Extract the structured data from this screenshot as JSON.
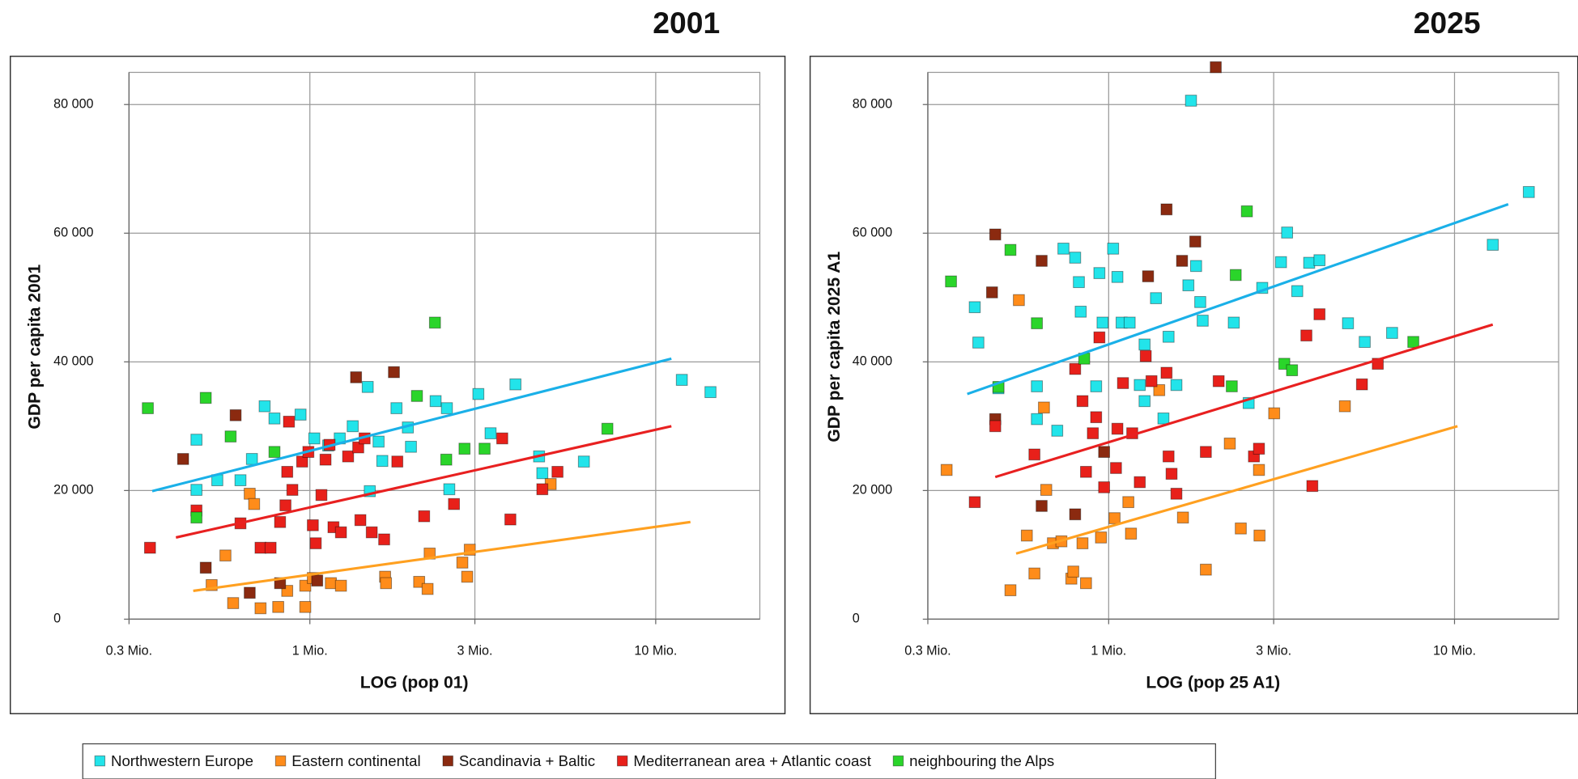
{
  "chart_data": [
    {
      "type": "scatter",
      "title": "2001",
      "xlabel": "LOG (pop 01)",
      "ylabel": "GDP per capita 2001",
      "xscale": "log",
      "grid": true,
      "legend": "bottom",
      "xlim": [
        0.3,
        20
      ],
      "ylim": [
        0,
        85000
      ],
      "xticks": [
        {
          "value": 0.3,
          "label": "0.3 Mio."
        },
        {
          "value": 1,
          "label": "1 Mio."
        },
        {
          "value": 3,
          "label": "3 Mio."
        },
        {
          "value": 10,
          "label": "10 Mio."
        }
      ],
      "yticks": [
        0,
        {
          "value": 20000,
          "label": "20 000"
        },
        {
          "value": 40000,
          "label": "40 000"
        },
        {
          "value": 60000,
          "label": "60 000"
        },
        {
          "value": 80000,
          "label": "80 000"
        }
      ],
      "series": [
        {
          "name": "Northwestern Europe",
          "color": "#22e4ea",
          "x": [
            0.47,
            0.47,
            0.54,
            0.63,
            0.68,
            0.74,
            0.79,
            0.94,
            1.03,
            1.13,
            1.22,
            1.33,
            1.47,
            1.58,
            1.62,
            1.78,
            1.92,
            1.96,
            2.31,
            2.49,
            3.07,
            3.33,
            3.93,
            4.6,
            4.7,
            6.2,
            11.9,
            14.4,
            2.53,
            1.49
          ],
          "values": [
            20100,
            27900,
            21600,
            21600,
            24900,
            33100,
            31200,
            31800,
            28100,
            27000,
            28100,
            30000,
            36100,
            27600,
            24600,
            32800,
            29800,
            26800,
            33900,
            32800,
            35000,
            28900,
            36500,
            25300,
            22700,
            24500,
            37200,
            35300,
            20200,
            19900
          ]
        },
        {
          "name": "Eastern continental",
          "color": "#ff8c1a",
          "x": [
            0.52,
            0.57,
            0.6,
            0.67,
            0.69,
            0.72,
            0.81,
            0.86,
            0.97,
            1.02,
            0.97,
            1.15,
            1.23,
            1.65,
            1.66,
            2.07,
            2.19,
            2.22,
            2.76,
            2.85,
            2.9,
            4.97
          ],
          "values": [
            5300,
            9900,
            2500,
            19500,
            17900,
            1700,
            1900,
            4400,
            5200,
            6400,
            1900,
            5600,
            5200,
            6600,
            5600,
            5800,
            4700,
            10200,
            8800,
            6600,
            10800,
            21000
          ]
        },
        {
          "name": "Scandinavia + Baltic",
          "color": "#8b2a10",
          "x": [
            0.43,
            0.5,
            0.61,
            0.67,
            0.82,
            1.05,
            1.36,
            1.75
          ],
          "values": [
            24900,
            8000,
            31700,
            4100,
            5600,
            6000,
            37600,
            38400
          ]
        },
        {
          "name": "Mediterranean area + Atlantic coast",
          "color": "#e8201a",
          "x": [
            0.345,
            0.47,
            0.63,
            0.72,
            0.77,
            0.82,
            0.85,
            0.86,
            0.87,
            0.89,
            0.95,
            0.99,
            1.02,
            1.04,
            1.08,
            1.11,
            1.14,
            1.17,
            1.23,
            1.29,
            1.38,
            1.4,
            1.44,
            1.51,
            1.64,
            1.79,
            2.14,
            2.61,
            3.6,
            3.8,
            4.7,
            5.2
          ],
          "values": [
            11100,
            16900,
            14900,
            11100,
            11100,
            15100,
            17700,
            22900,
            30700,
            20100,
            24500,
            26000,
            14600,
            11800,
            19300,
            24800,
            27100,
            14300,
            13500,
            25300,
            26700,
            15400,
            28100,
            13500,
            12400,
            24500,
            16000,
            17900,
            28100,
            15500,
            20200,
            22900
          ]
        },
        {
          "name": "neighbouring the Alps",
          "color": "#2ad52a",
          "x": [
            0.34,
            0.47,
            0.5,
            0.59,
            0.79,
            2.04,
            2.3,
            2.48,
            2.8,
            3.2,
            7.25
          ],
          "values": [
            32800,
            15800,
            34400,
            28400,
            26000,
            34700,
            46100,
            24800,
            26500,
            26500,
            29600
          ]
        }
      ],
      "trendlines": [
        {
          "color": "#1ab0e8",
          "x": [
            0.35,
            11.1
          ],
          "values": [
            19900,
            40500
          ]
        },
        {
          "color": "#e82020",
          "x": [
            0.41,
            11.1
          ],
          "values": [
            12700,
            30000
          ]
        },
        {
          "color": "#ffa020",
          "x": [
            0.46,
            12.6
          ],
          "values": [
            4400,
            15100
          ]
        }
      ]
    },
    {
      "type": "scatter",
      "title": "2025",
      "xlabel": "LOG (pop 25 A1)",
      "ylabel": "GDP per capita 2025  A1",
      "xscale": "log",
      "grid": true,
      "xlim": [
        0.3,
        20
      ],
      "ylim": [
        0,
        85000
      ],
      "xticks": [
        {
          "value": 0.3,
          "label": "0.3 Mio."
        },
        {
          "value": 1,
          "label": "1 Mio."
        },
        {
          "value": 3,
          "label": "3 Mio."
        },
        {
          "value": 10,
          "label": "10 Mio."
        }
      ],
      "yticks": [
        0,
        {
          "value": 20000,
          "label": "20 000"
        },
        {
          "value": 40000,
          "label": "40 000"
        },
        {
          "value": 60000,
          "label": "60 000"
        },
        {
          "value": 80000,
          "label": "80 000"
        }
      ],
      "series": [
        {
          "color": "#22e4ea",
          "x": [
            0.41,
            0.42,
            0.48,
            0.62,
            0.62,
            0.71,
            0.74,
            0.8,
            0.82,
            0.83,
            0.92,
            0.94,
            0.96,
            1.03,
            1.06,
            1.09,
            1.15,
            1.23,
            1.27,
            1.27,
            1.37,
            1.44,
            1.49,
            1.57,
            1.7,
            1.73,
            1.79,
            1.84,
            1.87,
            2.3,
            2.54,
            2.78,
            3.28,
            3.15,
            3.51,
            3.8,
            4.07,
            4.92,
            5.5,
            6.6,
            12.9,
            16.4
          ],
          "values": [
            48500,
            43000,
            35900,
            36200,
            31100,
            29300,
            57600,
            56200,
            52400,
            47800,
            36200,
            53800,
            46100,
            57600,
            53200,
            46100,
            46100,
            36400,
            42700,
            33900,
            49900,
            31200,
            43900,
            36400,
            51900,
            80600,
            54900,
            49300,
            46400,
            46100,
            33600,
            51500,
            60100,
            55500,
            51000,
            55400,
            55800,
            46000,
            43100,
            44500,
            58200,
            66400
          ]
        },
        {
          "color": "#ff8c1a",
          "x": [
            0.34,
            0.52,
            0.55,
            0.58,
            0.61,
            0.65,
            0.66,
            0.69,
            0.73,
            0.78,
            0.79,
            0.84,
            0.86,
            0.95,
            1.04,
            1.14,
            1.16,
            1.4,
            1.64,
            1.91,
            2.24,
            2.41,
            2.72,
            2.73,
            3.01,
            4.82
          ],
          "values": [
            23200,
            4500,
            49600,
            13000,
            7100,
            32900,
            20100,
            11800,
            12100,
            6300,
            7400,
            11800,
            5600,
            12700,
            15700,
            18200,
            13300,
            35600,
            15800,
            7700,
            27300,
            14100,
            23200,
            13000,
            32000,
            33100
          ]
        },
        {
          "color": "#8b2a10",
          "x": [
            0.47,
            0.46,
            0.47,
            0.64,
            0.64,
            0.8,
            0.97,
            1.3,
            1.47,
            1.63,
            1.78,
            2.04
          ],
          "values": [
            59800,
            50800,
            31100,
            55700,
            17600,
            16300,
            26000,
            53300,
            63700,
            55700,
            58700,
            85800
          ]
        },
        {
          "color": "#e8201a",
          "x": [
            0.41,
            0.47,
            0.61,
            0.8,
            0.84,
            0.86,
            0.9,
            0.92,
            0.94,
            0.97,
            1.05,
            1.06,
            1.1,
            1.17,
            1.23,
            1.28,
            1.33,
            1.47,
            1.49,
            1.52,
            1.57,
            1.91,
            2.08,
            2.63,
            2.72,
            3.73,
            3.88,
            4.07,
            5.4,
            6.0
          ],
          "values": [
            18200,
            30000,
            25600,
            38900,
            33900,
            22900,
            28900,
            31400,
            43800,
            20500,
            23500,
            29600,
            36700,
            28900,
            21300,
            40900,
            37000,
            38300,
            25300,
            22600,
            19500,
            26000,
            37000,
            25300,
            26500,
            44100,
            20700,
            47400,
            36500,
            39700
          ]
        },
        {
          "color": "#2ad52a",
          "x": [
            0.35,
            0.48,
            0.52,
            0.62,
            0.85,
            2.33,
            2.51,
            2.27,
            3.22,
            3.39,
            7.6
          ],
          "values": [
            52500,
            36100,
            57400,
            46000,
            40500,
            53500,
            63400,
            36200,
            39700,
            38700,
            43100
          ]
        }
      ],
      "trendlines": [
        {
          "color": "#1ab0e8",
          "x": [
            0.39,
            14.3
          ],
          "values": [
            35000,
            64500
          ]
        },
        {
          "color": "#e82020",
          "x": [
            0.47,
            12.9
          ],
          "values": [
            22100,
            45800
          ]
        },
        {
          "color": "#ffa020",
          "x": [
            0.54,
            10.2
          ],
          "values": [
            10200,
            30000
          ]
        }
      ]
    }
  ]
}
